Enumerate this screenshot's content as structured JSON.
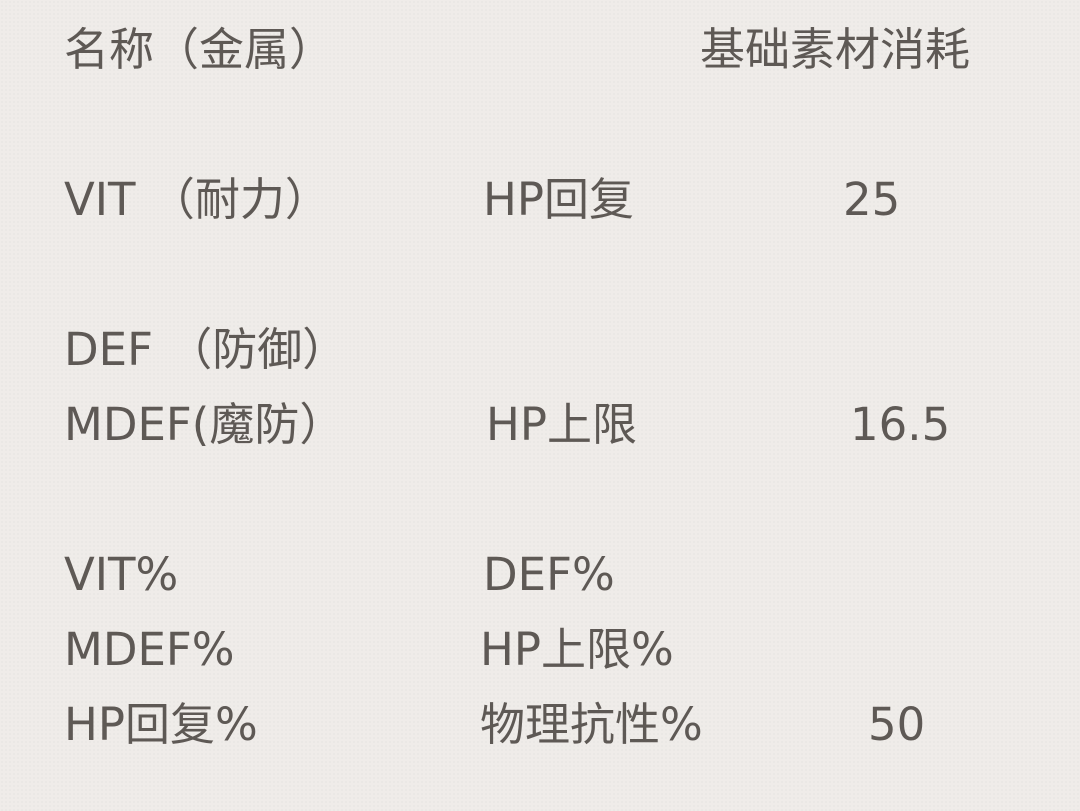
{
  "header": {
    "name_label": "名称（金属）",
    "cost_label": "基础素材消耗"
  },
  "rows": [
    {
      "stat": "VIT （耐力）",
      "effect": "HP回复",
      "value": "25"
    },
    {
      "stat": "DEF （防御）",
      "effect": "",
      "value": ""
    },
    {
      "stat": "MDEF(魔防）",
      "effect": "HP上限",
      "value": "16.5"
    },
    {
      "stat": "VIT%",
      "effect": "DEF%",
      "value": ""
    },
    {
      "stat": "MDEF%",
      "effect": "HP上限%",
      "value": ""
    },
    {
      "stat": "HP回复%",
      "effect": "物理抗性%",
      "value": "50"
    }
  ]
}
